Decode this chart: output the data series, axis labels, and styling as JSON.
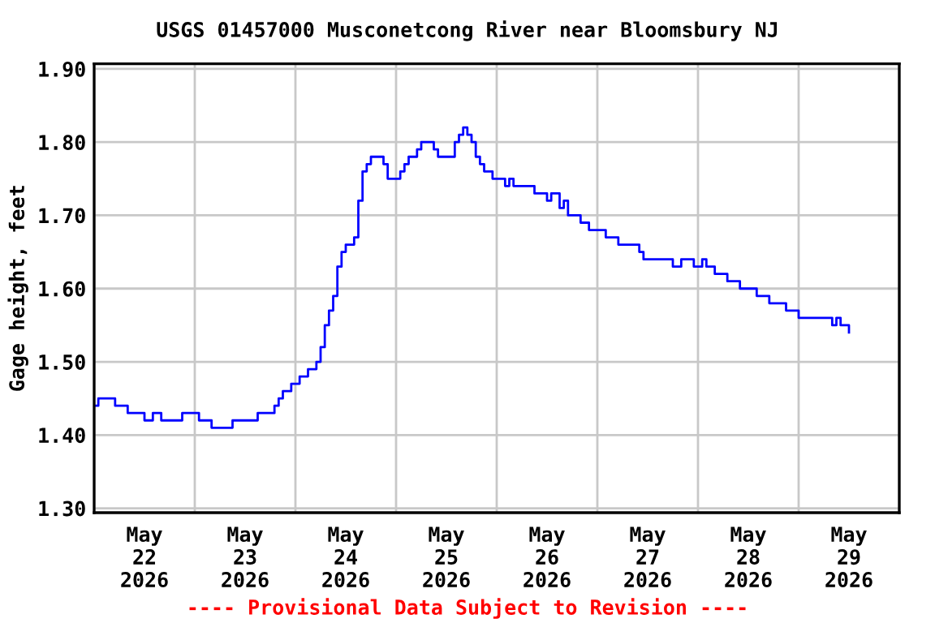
{
  "chart_data": {
    "type": "step",
    "title": "USGS 01457000 Musconetcong River near Bloomsbury NJ",
    "ylabel": "Gage height, feet",
    "annotations": [
      "---- Provisional Data Subject to Revision ----"
    ],
    "series": [
      {
        "color": "#0000ff",
        "x": [
          "2026-05-22T00:00",
          "2026-05-22T01:00",
          "2026-05-22T05:00",
          "2026-05-22T08:00",
          "2026-05-22T12:00",
          "2026-05-22T14:00",
          "2026-05-22T16:00",
          "2026-05-22T21:00",
          "2026-05-23T01:00",
          "2026-05-23T04:00",
          "2026-05-23T09:00",
          "2026-05-23T15:00",
          "2026-05-23T19:00",
          "2026-05-23T20:00",
          "2026-05-23T21:00",
          "2026-05-23T23:00",
          "2026-05-24T01:00",
          "2026-05-24T03:00",
          "2026-05-24T05:00",
          "2026-05-24T06:00",
          "2026-05-24T07:00",
          "2026-05-24T08:00",
          "2026-05-24T09:00",
          "2026-05-24T10:00",
          "2026-05-24T11:00",
          "2026-05-24T12:00",
          "2026-05-24T14:00",
          "2026-05-24T15:00",
          "2026-05-24T16:00",
          "2026-05-24T17:00",
          "2026-05-24T18:00",
          "2026-05-24T20:00",
          "2026-05-24T21:00",
          "2026-05-24T22:00",
          "2026-05-25T00:00",
          "2026-05-25T01:00",
          "2026-05-25T02:00",
          "2026-05-25T03:00",
          "2026-05-25T05:00",
          "2026-05-25T06:00",
          "2026-05-25T09:00",
          "2026-05-25T10:00",
          "2026-05-25T14:00",
          "2026-05-25T15:00",
          "2026-05-25T16:00",
          "2026-05-25T17:00",
          "2026-05-25T18:00",
          "2026-05-25T19:00",
          "2026-05-25T20:00",
          "2026-05-25T21:00",
          "2026-05-25T23:00",
          "2026-05-26T02:00",
          "2026-05-26T03:00",
          "2026-05-26T04:00",
          "2026-05-26T09:00",
          "2026-05-26T12:00",
          "2026-05-26T13:00",
          "2026-05-26T15:00",
          "2026-05-26T16:00",
          "2026-05-26T17:00",
          "2026-05-26T20:00",
          "2026-05-26T22:00",
          "2026-05-27T02:00",
          "2026-05-27T05:00",
          "2026-05-27T10:00",
          "2026-05-27T11:00",
          "2026-05-27T18:00",
          "2026-05-27T20:00",
          "2026-05-27T23:00",
          "2026-05-28T01:00",
          "2026-05-28T02:00",
          "2026-05-28T04:00",
          "2026-05-28T07:00",
          "2026-05-28T10:00",
          "2026-05-28T14:00",
          "2026-05-28T17:00",
          "2026-05-28T21:00",
          "2026-05-29T00:00",
          "2026-05-29T07:00",
          "2026-05-29T08:00",
          "2026-05-29T09:00",
          "2026-05-29T10:00",
          "2026-05-29T12:00"
        ],
        "values": [
          1.44,
          1.45,
          1.44,
          1.43,
          1.42,
          1.43,
          1.42,
          1.43,
          1.42,
          1.41,
          1.42,
          1.43,
          1.44,
          1.45,
          1.46,
          1.47,
          1.48,
          1.49,
          1.5,
          1.52,
          1.55,
          1.57,
          1.59,
          1.63,
          1.65,
          1.66,
          1.67,
          1.72,
          1.76,
          1.77,
          1.78,
          1.78,
          1.77,
          1.75,
          1.75,
          1.76,
          1.77,
          1.78,
          1.79,
          1.8,
          1.79,
          1.78,
          1.8,
          1.81,
          1.82,
          1.81,
          1.8,
          1.78,
          1.77,
          1.76,
          1.75,
          1.74,
          1.75,
          1.74,
          1.73,
          1.72,
          1.73,
          1.71,
          1.72,
          1.7,
          1.69,
          1.68,
          1.67,
          1.66,
          1.65,
          1.64,
          1.63,
          1.64,
          1.63,
          1.64,
          1.63,
          1.62,
          1.61,
          1.6,
          1.59,
          1.58,
          1.57,
          1.56,
          1.56,
          1.55,
          1.56,
          1.55,
          1.54
        ]
      }
    ],
    "xlim": [
      "2026-05-22T00:00",
      "2026-05-30T00:00"
    ],
    "xticks": [
      {
        "value": "2026-05-22T00:00",
        "label": null
      },
      {
        "value": "2026-05-23T00:00",
        "label": null
      },
      {
        "value": "2026-05-24T00:00",
        "label": null
      },
      {
        "value": "2026-05-25T00:00",
        "label": null
      },
      {
        "value": "2026-05-26T00:00",
        "label": null
      },
      {
        "value": "2026-05-27T00:00",
        "label": null
      },
      {
        "value": "2026-05-28T00:00",
        "label": null
      },
      {
        "value": "2026-05-29T00:00",
        "label": null
      },
      {
        "value": "2026-05-30T00:00",
        "label": null
      },
      {
        "value": "2026-05-22T12:00",
        "label": "May\n22\n2026"
      },
      {
        "value": "2026-05-23T12:00",
        "label": "May\n23\n2026"
      },
      {
        "value": "2026-05-24T12:00",
        "label": "May\n24\n2026"
      },
      {
        "value": "2026-05-25T12:00",
        "label": "May\n25\n2026"
      },
      {
        "value": "2026-05-26T12:00",
        "label": "May\n26\n2026"
      },
      {
        "value": "2026-05-27T12:00",
        "label": "May\n27\n2026"
      },
      {
        "value": "2026-05-28T12:00",
        "label": "May\n28\n2026"
      },
      {
        "value": "2026-05-29T12:00",
        "label": "May\n29\n2026"
      }
    ],
    "ylim": [
      1.294,
      1.907
    ],
    "yticks": [
      {
        "value": 1.3,
        "label": "1.30"
      },
      {
        "value": 1.4,
        "label": "1.40"
      },
      {
        "value": 1.5,
        "label": "1.50"
      },
      {
        "value": 1.6,
        "label": "1.60"
      },
      {
        "value": 1.7,
        "label": "1.70"
      },
      {
        "value": 1.8,
        "label": "1.80"
      },
      {
        "value": 1.9,
        "label": "1.90"
      }
    ],
    "grid": true,
    "legend": false,
    "marker": "none",
    "line_style": "solid"
  }
}
